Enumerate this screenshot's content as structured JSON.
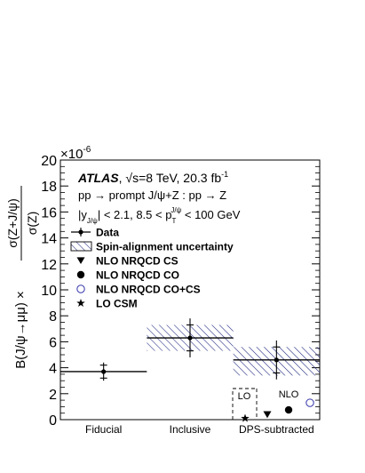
{
  "chart_data": {
    "type": "scatter",
    "experiment": "ATLAS",
    "energy_label": "√s=8 TeV, 20.3 fb",
    "energy_exp": "-1",
    "process_label": "pp → prompt J/ψ+Z : pp → Z",
    "cuts_label_a": "|y",
    "cuts_label_a_sub": "J/ψ",
    "cuts_label_b": "| < 2.1, 8.5 < p",
    "cuts_label_b_sub": "T",
    "cuts_label_b_sup": "J/ψ",
    "cuts_label_c": " < 100 GeV",
    "ylabel": "B(J/ψ→μμ) × σ(Z+J/ψ) / σ(Z)",
    "ylabel_prefix": "B(J/ψ→μμ) ×",
    "ylabel_num": "σ(Z+J/ψ)",
    "ylabel_den": "σ(Z)",
    "y_multiplier": "×10",
    "y_multiplier_exp": "-6",
    "ylim": [
      0,
      20
    ],
    "yticks": [
      0,
      2,
      4,
      6,
      8,
      10,
      12,
      14,
      16,
      18,
      20
    ],
    "categories": [
      "Fiducial",
      "Inclusive",
      "DPS-subtracted"
    ],
    "data": [
      {
        "category": "Fiducial",
        "value": 3.7,
        "stat_err": 0.5,
        "total_err": 0.7
      },
      {
        "category": "Inclusive",
        "value": 6.3,
        "stat_err": 1.0,
        "total_err": 1.5
      },
      {
        "category": "DPS-subtracted",
        "value": 4.6,
        "stat_err": 1.0,
        "total_err": 1.5
      }
    ],
    "spin_alignment_bands": [
      {
        "category": "Inclusive",
        "low": 5.3,
        "high": 7.3
      },
      {
        "category": "DPS-subtracted",
        "low": 3.4,
        "high": 5.6
      }
    ],
    "theory_predictions": [
      {
        "name": "NLO NRQCD CS",
        "value": 0.4
      },
      {
        "name": "NLO NRQCD CO",
        "value": 0.75
      },
      {
        "name": "NLO NRQCD CO+CS",
        "value": 1.3
      },
      {
        "name": "LO CSM",
        "value": 0.1
      }
    ],
    "box_labels": {
      "lo": "LO",
      "nlo": "NLO"
    },
    "legend": [
      {
        "label": "Data",
        "marker": "point-with-error"
      },
      {
        "label": "Spin-alignment uncertainty",
        "marker": "hatched-box"
      },
      {
        "label": "NLO NRQCD CS",
        "marker": "triangle-down"
      },
      {
        "label": "NLO NRQCD CO",
        "marker": "filled-circle"
      },
      {
        "label": "NLO NRQCD CO+CS",
        "marker": "open-circle"
      },
      {
        "label": "LO CSM",
        "marker": "star"
      }
    ],
    "colors": {
      "data": "#000000",
      "band": "#1a237e",
      "open_circle": "#3333aa"
    },
    "legend_placement": "top-left",
    "grid": false
  }
}
